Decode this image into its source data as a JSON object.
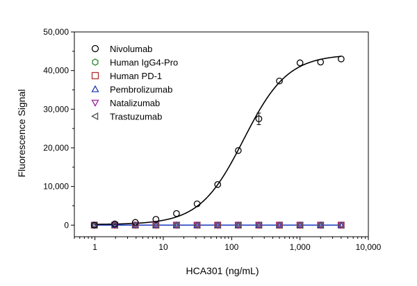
{
  "chart_data": {
    "type": "scatter",
    "title": "",
    "xlabel": "HCA301 (ng/mL)",
    "ylabel": "Fluorescence Signal",
    "x_scale": "log",
    "xlim": [
      0.5,
      10000
    ],
    "ylim": [
      -3000,
      50000
    ],
    "x_ticks": [
      1,
      10,
      100,
      1000,
      10000
    ],
    "x_tick_labels": [
      "1",
      "10",
      "100",
      "1,000",
      "10,000"
    ],
    "y_ticks": [
      0,
      10000,
      20000,
      30000,
      40000,
      50000
    ],
    "y_tick_labels": [
      "0",
      "10,000",
      "20,000",
      "30,000",
      "40,000",
      "50,000"
    ],
    "grid": false,
    "legend_position": "top-left",
    "series": [
      {
        "name": "Nivolumab",
        "marker": "circle",
        "color": "#000000",
        "x": [
          0.98,
          1.95,
          3.9,
          7.8,
          15.6,
          31.25,
          62.5,
          125,
          250,
          500,
          1000,
          2000,
          4000
        ],
        "y": [
          0,
          300,
          700,
          1500,
          3000,
          5500,
          10500,
          19300,
          27500,
          37300,
          42000,
          42200,
          43000
        ],
        "error": [
          0,
          0,
          0,
          0,
          0,
          0,
          0,
          0,
          1500,
          0,
          0,
          0,
          0
        ],
        "fit_curve": {
          "bottom": 150,
          "top": 44200,
          "ec50": 150,
          "hill": 1.35
        }
      },
      {
        "name": "Human IgG4-Pro",
        "marker": "hexagon",
        "color": "#2e8b2e",
        "x": [
          0.98,
          1.95,
          3.9,
          7.8,
          15.6,
          31.25,
          62.5,
          125,
          250,
          500,
          1000,
          2000,
          4000
        ],
        "y": [
          0,
          0,
          0,
          0,
          0,
          0,
          0,
          0,
          0,
          0,
          0,
          0,
          0
        ]
      },
      {
        "name": "Human PD-1",
        "marker": "square",
        "color": "#b03030",
        "x": [
          0.98,
          1.95,
          3.9,
          7.8,
          15.6,
          31.25,
          62.5,
          125,
          250,
          500,
          1000,
          2000,
          4000
        ],
        "y": [
          0,
          0,
          0,
          0,
          0,
          0,
          0,
          0,
          0,
          0,
          0,
          0,
          0
        ]
      },
      {
        "name": "Pembrolizumab",
        "marker": "triangle-up",
        "color": "#1f3fbf",
        "x": [
          0.98,
          1.95,
          3.9,
          7.8,
          15.6,
          31.25,
          62.5,
          125,
          250,
          500,
          1000,
          2000,
          4000
        ],
        "y": [
          0,
          0,
          0,
          0,
          0,
          0,
          0,
          0,
          0,
          0,
          0,
          0,
          0
        ]
      },
      {
        "name": "Natalizumab",
        "marker": "triangle-down",
        "color": "#a020a0",
        "x": [
          0.98,
          1.95,
          3.9,
          7.8,
          15.6,
          31.25,
          62.5,
          125,
          250,
          500,
          1000,
          2000,
          4000
        ],
        "y": [
          0,
          0,
          0,
          0,
          0,
          0,
          0,
          0,
          0,
          0,
          0,
          0,
          0
        ]
      },
      {
        "name": "Trastuzumab",
        "marker": "triangle-left",
        "color": "#555555",
        "x": [
          0.98,
          1.95,
          3.9,
          7.8,
          15.6,
          31.25,
          62.5,
          125,
          250,
          500,
          1000,
          2000,
          4000
        ],
        "y": [
          0,
          0,
          0,
          0,
          0,
          0,
          0,
          0,
          0,
          0,
          0,
          0,
          0
        ]
      }
    ],
    "baseline_line_color": "#1f3fbf"
  }
}
